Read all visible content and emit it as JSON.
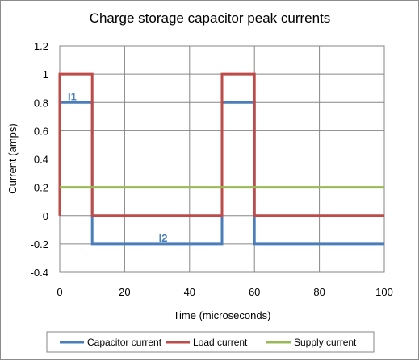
{
  "chart_data": {
    "type": "line",
    "title": "Charge storage capacitor peak currents",
    "xlabel": "Time (microseconds)",
    "ylabel": "Current (amps)",
    "xlim": [
      0,
      100
    ],
    "ylim": [
      -0.4,
      1.2
    ],
    "x_ticks": [
      0,
      20,
      40,
      60,
      80,
      100
    ],
    "y_ticks": [
      -0.4,
      -0.2,
      0,
      0.2,
      0.4,
      0.6,
      0.8,
      1,
      1.2
    ],
    "y_tick_labels": [
      "-0.4",
      "-0.2",
      "0",
      "0.2",
      "0.4",
      "0.6",
      "0.8",
      "1",
      "1.2"
    ],
    "grid": true,
    "legend_position": "bottom",
    "series": [
      {
        "name": "Capacitor current",
        "color": "#4a7ebb",
        "x": [
          0,
          0,
          10,
          10,
          50,
          50,
          60,
          60,
          100
        ],
        "y": [
          0,
          0.8,
          0.8,
          -0.2,
          -0.2,
          0.8,
          0.8,
          -0.2,
          -0.2
        ]
      },
      {
        "name": "Load current",
        "color": "#be4b48",
        "x": [
          0,
          0,
          10,
          10,
          50,
          50,
          60,
          60,
          100
        ],
        "y": [
          0,
          1,
          1,
          0,
          0,
          1,
          1,
          0,
          0
        ]
      },
      {
        "name": "Supply current",
        "color": "#98b954",
        "x": [
          0,
          100
        ],
        "y": [
          0.2,
          0.2
        ]
      }
    ],
    "annotations": [
      {
        "text": "I1",
        "x": 2.5,
        "y": 0.8,
        "color": "#4a7ebb"
      },
      {
        "text": "I2",
        "x": 30.5,
        "y": -0.2,
        "color": "#4a7ebb"
      }
    ]
  }
}
